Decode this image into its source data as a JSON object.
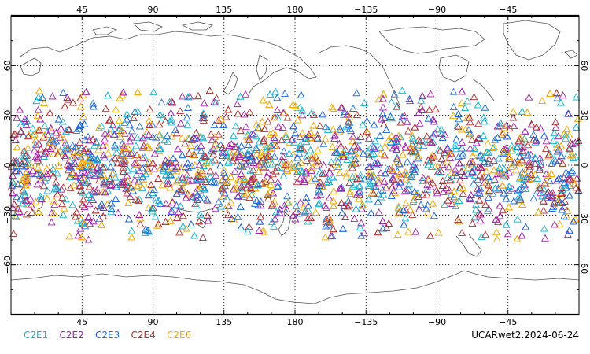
{
  "map": {
    "projection": "equirectangular",
    "lon_center": 180,
    "lat_range": [
      -90,
      90
    ],
    "graticule_lons": [
      45,
      90,
      135,
      180,
      -135,
      -90,
      -45
    ],
    "lon_tick_labels": [
      "45",
      "90",
      "135",
      "180",
      "−135",
      "−90",
      "−45"
    ],
    "graticule_lats": [
      60,
      30,
      0,
      -30,
      -60
    ],
    "lat_tick_labels": [
      "60",
      "30",
      "0",
      "−30",
      "−60"
    ],
    "grid": "dotted"
  },
  "legend": [
    {
      "label": "C2E1",
      "color": "#19b4d0"
    },
    {
      "label": "C2E2",
      "color": "#a020a8"
    },
    {
      "label": "C2E3",
      "color": "#1e6ad8"
    },
    {
      "label": "C2E4",
      "color": "#b03030"
    },
    {
      "label": "C2E6",
      "color": "#f2a800"
    }
  ],
  "run_label": "UCARwet2.2024-06-24",
  "marker": "triangle",
  "observations": {
    "lat_range": [
      -45,
      45
    ],
    "lon_range": [
      0,
      360
    ],
    "density": "approximately uniform, denser near the equator"
  }
}
